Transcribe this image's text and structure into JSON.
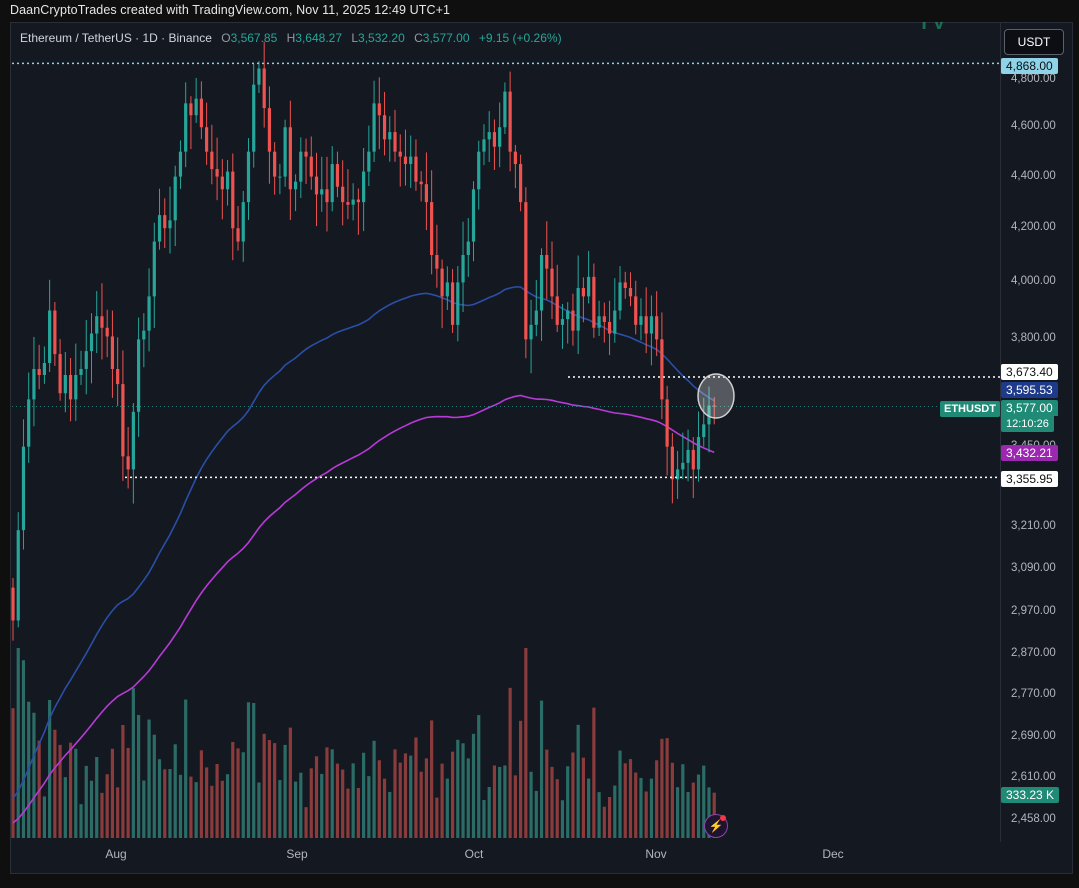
{
  "header": {
    "credit": "DaanCryptoTrades created with TradingView.com, Nov 11, 2025 12:49 UTC+1"
  },
  "legend": {
    "symbol": "Ethereum / TetherUS · 1D · Binance",
    "open_label": "O",
    "open": "3,567.85",
    "high_label": "H",
    "high": "3,648.27",
    "low_label": "L",
    "low": "3,532.20",
    "close_label": "C",
    "close": "3,577.00",
    "change": "+9.15 (+0.26%)"
  },
  "currency_button": "USDT",
  "price_labels": {
    "top_level": "4,868.00",
    "resistance": "3,673.40",
    "ma_blue": "3,595.53",
    "symbol": "ETHUSDT",
    "last_price": "3,577.00",
    "countdown": "12:10:26",
    "ma_purple": "3,432.21",
    "support": "3,355.95",
    "volume": "333.23 K"
  },
  "colors": {
    "bull": "#26a69a",
    "bear": "#ef5350",
    "ma_blue": "#2a4fa8",
    "ma_purple": "#b83ad8",
    "dotted_line": "#ffffff",
    "top_level_line": "#8fd3e8"
  },
  "chart_data": {
    "type": "candlestick",
    "title": "Ethereum / TetherUS · 1D · Binance",
    "y_axis": {
      "ticks": [
        4800,
        4600,
        4400,
        4200,
        4000,
        3800,
        3450,
        3210,
        3090,
        2970,
        2870,
        2770,
        2690,
        2610,
        2458
      ],
      "tick_labels": [
        "4,800.00",
        "4,600.00",
        "4,400.00",
        "4,200.00",
        "4,000.00",
        "3,800.00",
        "3,450.00",
        "3,210.00",
        "3,090.00",
        "2,970.00",
        "2,870.00",
        "2,770.00",
        "2,690.00",
        "2,610.00",
        "2,458.00"
      ],
      "scale": "log"
    },
    "x_axis": {
      "tick_labels": [
        "Aug",
        "Sep",
        "Oct",
        "Nov",
        "Dec"
      ]
    },
    "horizontal_levels": [
      {
        "price": 4868.0,
        "style": "dotted"
      },
      {
        "price": 3673.4,
        "style": "dotted"
      },
      {
        "price": 3355.95,
        "style": "dotted"
      }
    ],
    "closes": [
      2950,
      3200,
      3450,
      3600,
      3700,
      3680,
      3720,
      3900,
      3750,
      3620,
      3680,
      3600,
      3680,
      3700,
      3760,
      3820,
      3880,
      3840,
      3810,
      3700,
      3650,
      3420,
      3380,
      3560,
      3800,
      3830,
      3950,
      4150,
      4250,
      4200,
      4230,
      4400,
      4500,
      4700,
      4650,
      4720,
      4600,
      4500,
      4430,
      4400,
      4350,
      4420,
      4200,
      4150,
      4300,
      4500,
      4780,
      4850,
      4680,
      4500,
      4400,
      4400,
      4600,
      4350,
      4380,
      4500,
      4480,
      4400,
      4330,
      4350,
      4300,
      4450,
      4360,
      4300,
      4290,
      4310,
      4300,
      4420,
      4500,
      4700,
      4650,
      4550,
      4580,
      4500,
      4480,
      4450,
      4480,
      4380,
      4370,
      4300,
      4100,
      4050,
      3950,
      4000,
      3850,
      4000,
      4100,
      4150,
      4350,
      4500,
      4550,
      4580,
      4520,
      4600,
      4750,
      4500,
      4450,
      4300,
      3800,
      3850,
      3900,
      4100,
      4050,
      3950,
      3850,
      3870,
      3900,
      3830,
      3980,
      3950,
      4020,
      3840,
      3880,
      3860,
      3820,
      3900,
      4000,
      3980,
      3950,
      3850,
      3880,
      3820,
      3880,
      3800,
      3600,
      3450,
      3350,
      3380,
      3400,
      3440,
      3380,
      3480,
      3520,
      3580,
      3577
    ],
    "ma_blue": {
      "last": 3595.53
    },
    "ma_purple": {
      "last": 3432.21
    },
    "volume": {
      "last": "333.23 K"
    }
  }
}
